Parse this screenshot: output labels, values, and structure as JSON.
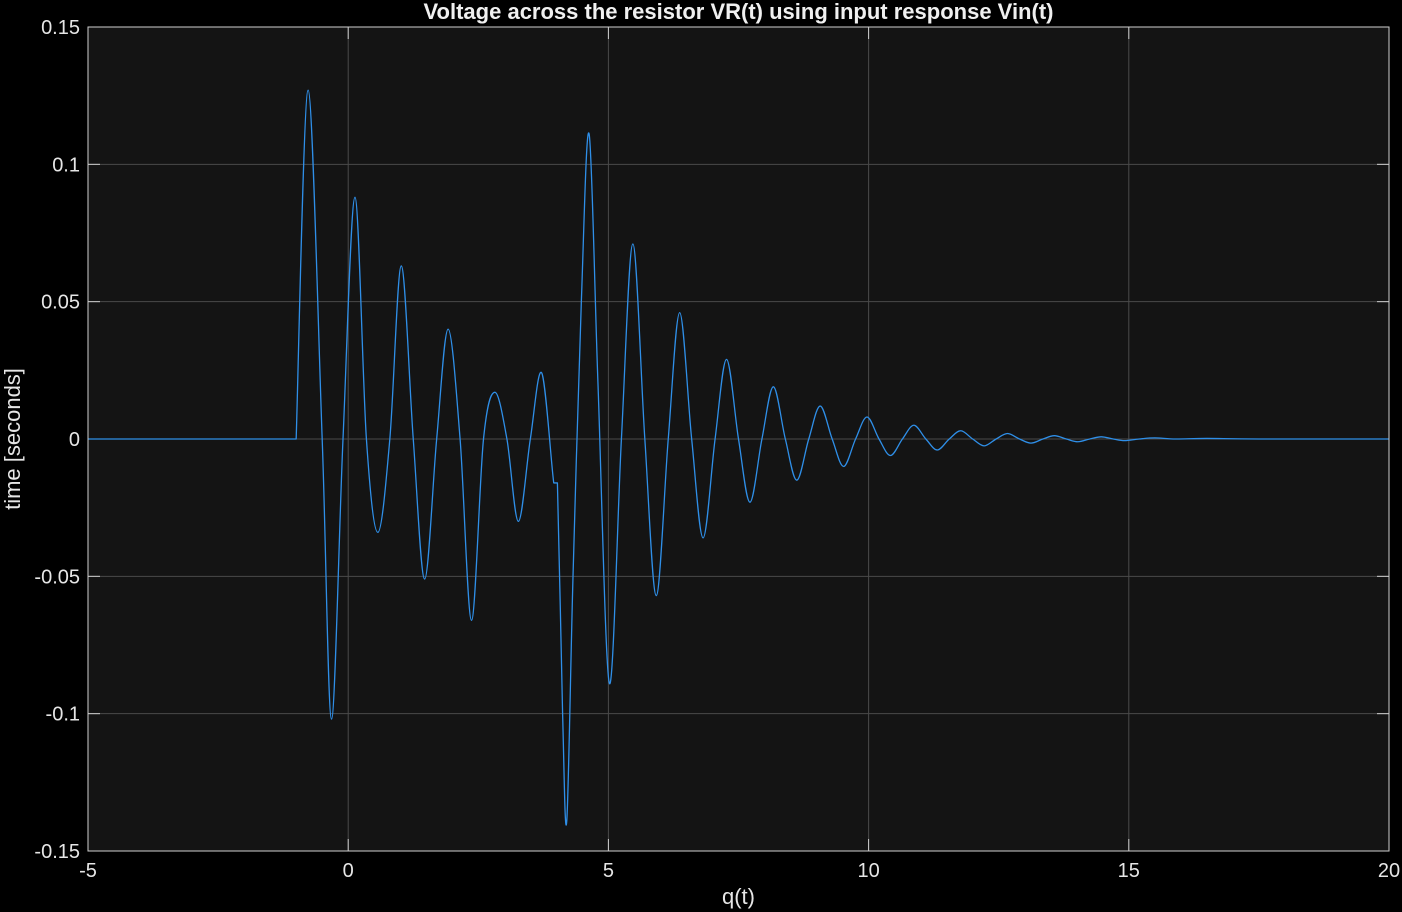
{
  "chart_data": {
    "type": "line",
    "title": "Voltage across the resistor VR(t) using input response Vin(t)",
    "xlabel": "q(t)",
    "ylabel": "time [seconds]",
    "xlim": [
      -5,
      20
    ],
    "ylim": [
      -0.15,
      0.15
    ],
    "xticks": [
      -5,
      0,
      5,
      10,
      15,
      20
    ],
    "yticks": [
      -0.15,
      -0.1,
      -0.05,
      0,
      0.05,
      0.1,
      0.15
    ],
    "ytick_labels": [
      "-0.15",
      "-0.1",
      "-0.05",
      "0",
      "0.05",
      "0.1",
      "0.15"
    ],
    "grid": true,
    "colors": {
      "figure_background": "#000000",
      "axes_background": "#141414",
      "grid": "#4a4a4a",
      "axes_frame": "#cfcfcf",
      "line": "#2f8fe8"
    },
    "series": [
      {
        "color": "#2f8fe8",
        "x": [
          -5,
          -1.0,
          -1.0,
          -0.77,
          -0.5,
          -0.32,
          -0.1,
          0.13,
          0.35,
          0.57,
          0.8,
          1.02,
          1.25,
          1.47,
          1.7,
          1.92,
          2.15,
          2.37,
          2.6,
          2.82,
          3.05,
          3.27,
          3.5,
          3.72,
          3.95,
          4.02,
          4.12,
          4.2,
          4.32,
          4.48,
          4.63,
          4.8,
          5.02,
          5.25,
          5.47,
          5.7,
          5.92,
          6.15,
          6.37,
          6.6,
          6.82,
          7.05,
          7.27,
          7.5,
          7.72,
          7.95,
          8.17,
          8.4,
          8.62,
          8.85,
          9.07,
          9.3,
          9.52,
          9.75,
          9.97,
          10.2,
          10.42,
          10.65,
          10.87,
          11.1,
          11.32,
          11.55,
          11.77,
          12.0,
          12.22,
          12.45,
          12.67,
          12.9,
          13.12,
          13.35,
          13.57,
          13.8,
          14.02,
          14.25,
          14.47,
          14.7,
          14.92,
          15.2,
          15.5,
          15.9,
          16.5,
          17.5,
          20
        ],
        "y": [
          0,
          0,
          0.0,
          0.127,
          0.0,
          -0.102,
          0.0,
          0.088,
          0.0,
          -0.034,
          0.0,
          0.063,
          0.0,
          -0.051,
          0.0,
          0.04,
          0.0,
          -0.066,
          0.0,
          0.017,
          0.0,
          -0.03,
          0.0,
          0.024,
          -0.016,
          -0.016,
          -0.1,
          -0.139,
          -0.05,
          0.05,
          0.111,
          0.02,
          -0.089,
          0.0,
          0.071,
          0.0,
          -0.057,
          0.0,
          0.046,
          0.0,
          -0.036,
          0.0,
          0.029,
          0.0,
          -0.023,
          0.0,
          0.019,
          0.0,
          -0.015,
          0.0,
          0.012,
          0.0,
          -0.01,
          0.0,
          0.008,
          0.0,
          -0.006,
          0.0,
          0.005,
          0.0,
          -0.004,
          0.0,
          0.003,
          0.0,
          -0.0025,
          0.0,
          0.002,
          0.0,
          -0.0015,
          0.0,
          0.0012,
          0.0,
          -0.001,
          0.0,
          0.0008,
          0.0,
          -0.0006,
          0.0,
          0.0004,
          0.0,
          0.0002,
          0.0,
          0
        ]
      }
    ]
  }
}
